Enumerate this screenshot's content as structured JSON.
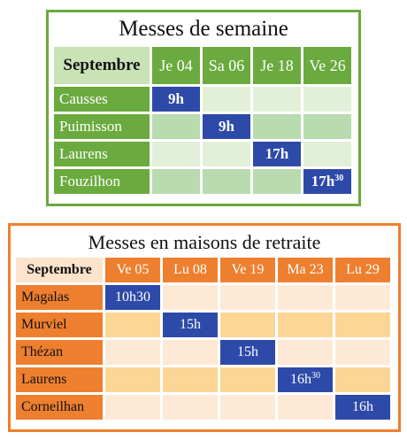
{
  "weekday": {
    "title": "Messes de semaine",
    "header_label": "Septembre",
    "dates": [
      "Je 04",
      "Sa 06",
      "Je 18",
      "Ve 26"
    ],
    "rows": [
      {
        "place": "Causses",
        "cells": [
          "9h",
          "",
          "",
          ""
        ]
      },
      {
        "place": "Puimisson",
        "cells": [
          "",
          "9h",
          "",
          ""
        ]
      },
      {
        "place": "Laurens",
        "cells": [
          "",
          "",
          "17h",
          ""
        ]
      },
      {
        "place": "Fouzilhon",
        "cells": [
          "",
          "",
          "",
          "17h"
        ]
      }
    ],
    "superscript": "30"
  },
  "retirement": {
    "title": "Messes en maisons de retraite",
    "header_label": "Septembre",
    "dates": [
      "Ve 05",
      "Lu 08",
      "Ve 19",
      "Ma 23",
      "Lu 29"
    ],
    "rows": [
      {
        "place": "Magalas",
        "cells": [
          "10h30",
          "",
          "",
          "",
          ""
        ]
      },
      {
        "place": "Murviel",
        "cells": [
          "",
          "15h",
          "",
          "",
          ""
        ]
      },
      {
        "place": "Thézan",
        "cells": [
          "",
          "",
          "15h",
          "",
          ""
        ]
      },
      {
        "place": "Laurens",
        "cells": [
          "",
          "",
          "",
          "16h",
          ""
        ]
      },
      {
        "place": "Corneilhan",
        "cells": [
          "",
          "",
          "",
          "",
          "16h"
        ]
      }
    ],
    "superscript": "30"
  },
  "colors": {
    "green": "#6aaa3e",
    "orange": "#ee7f2f",
    "mark_blue": "#2e4aa8"
  }
}
